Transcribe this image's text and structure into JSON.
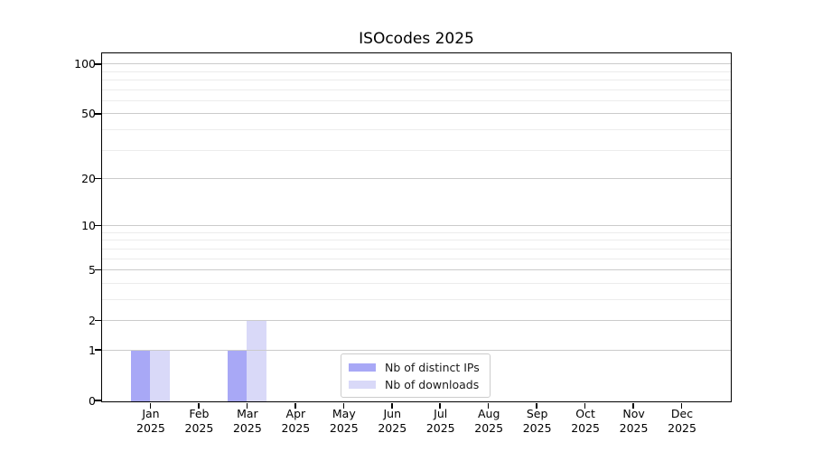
{
  "title": "ISOcodes 2025",
  "chart_data": {
    "type": "bar",
    "title": "ISOcodes 2025",
    "categories": [
      "Jan",
      "Feb",
      "Mar",
      "Apr",
      "May",
      "Jun",
      "Jul",
      "Aug",
      "Sep",
      "Oct",
      "Nov",
      "Dec"
    ],
    "year_label": "2025",
    "series": [
      {
        "name": "Nb of distinct IPs",
        "color": "#a8a8f6",
        "values": [
          1,
          0,
          1,
          0,
          0,
          0,
          0,
          0,
          0,
          0,
          0,
          0
        ]
      },
      {
        "name": "Nb of downloads",
        "color": "#d9d9f8",
        "values": [
          1,
          0,
          2,
          0,
          0,
          0,
          0,
          0,
          0,
          0,
          0,
          0
        ]
      }
    ],
    "y_scale": "log10(1+x)",
    "y_major_ticks": [
      0,
      1,
      2,
      5,
      10,
      20,
      50,
      100
    ],
    "y_minor_ticks": [
      3,
      4,
      6,
      7,
      8,
      9,
      30,
      40,
      60,
      70,
      80,
      90
    ],
    "ylim": [
      0,
      116
    ],
    "grid": true,
    "legend_position": "lower center",
    "colors": {
      "grid_major": "#cbcbcb",
      "grid_minor": "#ececec",
      "spine": "#000000",
      "text": "#000000",
      "legend_border": "#cccccc",
      "background": "#ffffff"
    }
  }
}
